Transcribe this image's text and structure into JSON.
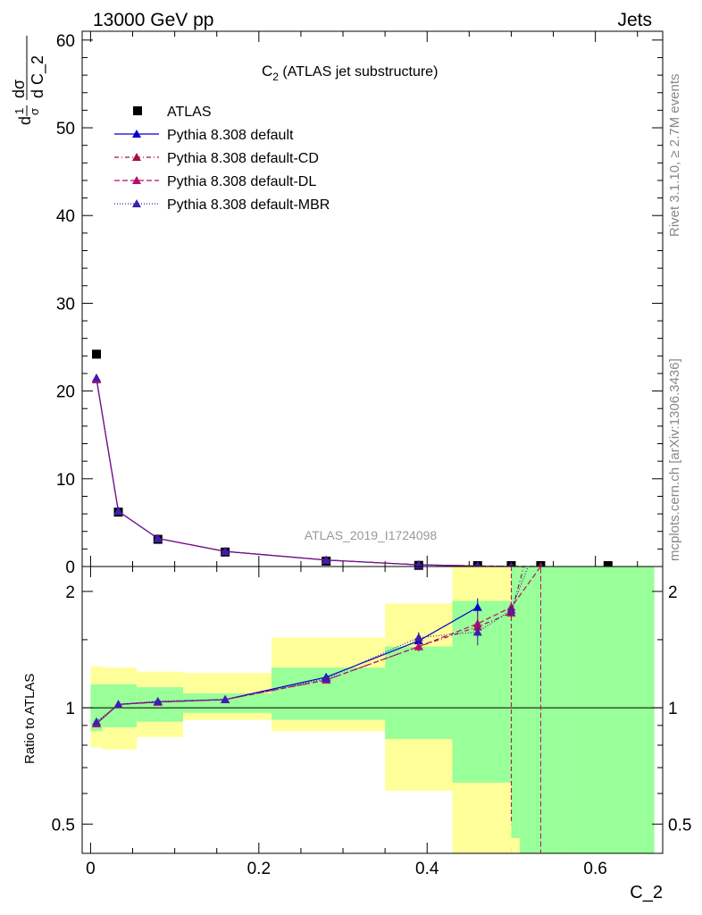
{
  "header": {
    "left": "13000 GeV pp",
    "right": "Jets"
  },
  "side": {
    "rivet": "Rivet 3.1.10, ≥ 2.7M events",
    "mcplots": "mcplots.cern.ch [arXiv:1306.3436]"
  },
  "plot_title": "C₂ (ATLAS jet substructure)",
  "watermark": "ATLAS_2019_I1724098",
  "ylabel_top": "1/σ dσ/d C_2",
  "colors": {
    "atlas": "#000000",
    "default": "#0000cc",
    "cd": "#a0104a",
    "dl": "#b3106a",
    "mbr": "#3b1fb0",
    "band_green": "#99ff99",
    "band_yellow": "#ffff99"
  },
  "chart_data": [
    {
      "type": "scatter",
      "panel": "main",
      "xlabel": "C_2",
      "ylabel": "1/σ dσ/d C_2",
      "xlim": [
        -0.01,
        0.68
      ],
      "ylim": [
        0,
        61
      ],
      "yticks": [
        0,
        10,
        20,
        30,
        40,
        50,
        60
      ],
      "legend_position": "top-left",
      "series": [
        {
          "name": "ATLAS",
          "key": "atlas",
          "marker": "square",
          "x": [
            0.007,
            0.033,
            0.08,
            0.16,
            0.28,
            0.39,
            0.46,
            0.5,
            0.535,
            0.615
          ],
          "y": [
            24.2,
            6.2,
            3.1,
            1.65,
            0.62,
            0.13,
            0.04,
            0.01,
            0.005,
            0.002
          ]
        },
        {
          "name": "Pythia 8.308 default",
          "key": "default",
          "marker": "triangle",
          "dash": "",
          "x": [
            0.007,
            0.033,
            0.08,
            0.16,
            0.28,
            0.39,
            0.46
          ],
          "y": [
            21.4,
            6.3,
            3.2,
            1.72,
            0.74,
            0.19,
            0.07
          ]
        },
        {
          "name": "Pythia 8.308 default-CD",
          "key": "cd",
          "marker": "triangle",
          "dash": "5,3,1,3",
          "x": [
            0.007,
            0.033,
            0.08,
            0.16,
            0.28,
            0.39,
            0.46,
            0.5
          ],
          "y": [
            21.3,
            6.3,
            3.2,
            1.72,
            0.74,
            0.19,
            0.07,
            0.02
          ]
        },
        {
          "name": "Pythia 8.308 default-DL",
          "key": "dl",
          "marker": "triangle",
          "dash": "6,3",
          "x": [
            0.007,
            0.033,
            0.08,
            0.16,
            0.28,
            0.39,
            0.46,
            0.5,
            0.535
          ],
          "y": [
            21.3,
            6.3,
            3.2,
            1.72,
            0.74,
            0.19,
            0.07,
            0.02,
            0.01
          ]
        },
        {
          "name": "Pythia 8.308 default-MBR",
          "key": "mbr",
          "marker": "triangle",
          "dash": "1,2",
          "x": [
            0.007,
            0.033,
            0.08,
            0.16,
            0.28,
            0.39,
            0.46,
            0.5
          ],
          "y": [
            21.5,
            6.3,
            3.2,
            1.72,
            0.74,
            0.19,
            0.07,
            0.02
          ]
        }
      ]
    },
    {
      "type": "line",
      "panel": "ratio",
      "xlabel": "C_2",
      "ylabel": "Ratio to ATLAS",
      "xlim": [
        -0.01,
        0.68
      ],
      "ylim": [
        0.42,
        2.32
      ],
      "yscale": "log",
      "xticks": [
        0,
        0.2,
        0.4,
        0.6
      ],
      "xtick_labels": [
        "0",
        "0.2",
        "0.4",
        "0.6"
      ],
      "yticks": [
        0.5,
        1,
        2
      ],
      "ytick_labels": [
        "0.5",
        "1",
        "2"
      ],
      "bands": [
        {
          "x0": 0.0,
          "x1": 0.014,
          "green": [
            0.87,
            1.15
          ],
          "yellow": [
            0.79,
            1.28
          ]
        },
        {
          "x0": 0.014,
          "x1": 0.055,
          "green": [
            0.89,
            1.15
          ],
          "yellow": [
            0.78,
            1.27
          ]
        },
        {
          "x0": 0.055,
          "x1": 0.11,
          "green": [
            0.92,
            1.13
          ],
          "yellow": [
            0.84,
            1.24
          ]
        },
        {
          "x0": 0.11,
          "x1": 0.215,
          "green": [
            0.97,
            1.09
          ],
          "yellow": [
            0.93,
            1.23
          ]
        },
        {
          "x0": 0.215,
          "x1": 0.35,
          "green": [
            0.93,
            1.27
          ],
          "yellow": [
            0.87,
            1.52
          ]
        },
        {
          "x0": 0.35,
          "x1": 0.43,
          "green": [
            0.83,
            1.44
          ],
          "yellow": [
            0.61,
            1.86
          ]
        },
        {
          "x0": 0.43,
          "x1": 0.5,
          "green": [
            0.64,
            1.89
          ],
          "yellow": [
            0.42,
            2.32
          ]
        },
        {
          "x0": 0.5,
          "x1": 0.51,
          "green": [
            0.46,
            2.32
          ],
          "yellow": [
            0.42,
            2.32
          ]
        },
        {
          "x0": 0.51,
          "x1": 0.565,
          "green": [
            0.42,
            2.32
          ],
          "yellow": [
            0.42,
            0.57
          ]
        },
        {
          "x0": 0.565,
          "x1": 0.67,
          "green": [
            0.42,
            2.32
          ],
          "yellow": [
            0.42,
            0.42
          ]
        }
      ],
      "series": [
        {
          "name": "Pythia 8.308 default",
          "key": "default",
          "dash": "",
          "x": [
            0.007,
            0.033,
            0.08,
            0.16,
            0.28,
            0.39,
            0.46
          ],
          "y": [
            0.91,
            1.02,
            1.035,
            1.05,
            1.2,
            1.49,
            1.82
          ],
          "err": [
            0.01,
            0.01,
            0.01,
            0.01,
            0.02,
            0.04,
            0.1
          ]
        },
        {
          "name": "Pythia 8.308 default-CD",
          "key": "cd",
          "dash": "5,3,1,3",
          "x": [
            0.007,
            0.033,
            0.08,
            0.16,
            0.28,
            0.39,
            0.46,
            0.5,
            0.515
          ],
          "y": [
            0.91,
            1.02,
            1.035,
            1.05,
            1.18,
            1.44,
            1.62,
            1.76,
            2.32
          ],
          "err": [
            0.01,
            0.01,
            0.01,
            0.01,
            0.02,
            0.04,
            0.1,
            0.05,
            0
          ]
        },
        {
          "name": "Pythia 8.308 default-DL",
          "key": "dl",
          "dash": "6,3",
          "x": [
            0.007,
            0.033,
            0.08,
            0.16,
            0.28,
            0.39,
            0.46,
            0.5,
            0.535
          ],
          "y": [
            0.91,
            1.02,
            1.035,
            1.05,
            1.18,
            1.44,
            1.65,
            1.82,
            2.32
          ],
          "err": [
            0.01,
            0.01,
            0.01,
            0.01,
            0.02,
            0.04,
            0.1,
            0.06,
            0
          ]
        },
        {
          "name": "Pythia 8.308 default-MBR",
          "key": "mbr",
          "dash": "1,2",
          "x": [
            0.007,
            0.033,
            0.08,
            0.16,
            0.28,
            0.39,
            0.46,
            0.5,
            0.52
          ],
          "y": [
            0.92,
            1.02,
            1.04,
            1.05,
            1.19,
            1.52,
            1.57,
            1.79,
            2.32
          ],
          "err": [
            0.01,
            0.01,
            0.01,
            0.01,
            0.02,
            0.05,
            0.12,
            0.05,
            0
          ]
        }
      ]
    }
  ]
}
